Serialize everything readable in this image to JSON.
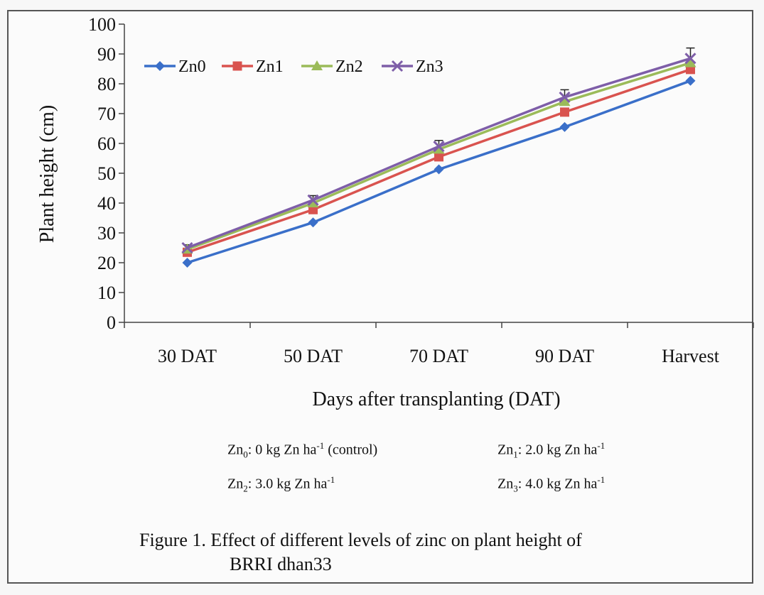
{
  "chart_data": {
    "type": "line",
    "categories": [
      "30 DAT",
      "50 DAT",
      "70 DAT",
      "90 DAT",
      "Harvest"
    ],
    "ylabel": "Plant height (cm)",
    "xlabel": "Days after  transplanting (DAT)",
    "ylim": [
      0,
      100
    ],
    "yticks": [
      "0",
      "10",
      "20",
      "30",
      "40",
      "50",
      "60",
      "70",
      "80",
      "90",
      "100"
    ],
    "grid": false,
    "legend_position": "top-left",
    "series": [
      {
        "name": "Zn0",
        "color": "#3a6fc9",
        "marker": "diamond",
        "values": [
          20.0,
          33.5,
          51.3,
          65.5,
          81.0
        ]
      },
      {
        "name": "Zn1",
        "color": "#d9534f",
        "marker": "square",
        "values": [
          23.5,
          37.8,
          55.5,
          70.5,
          84.8
        ]
      },
      {
        "name": "Zn2",
        "color": "#9bbb59",
        "marker": "triangle",
        "values": [
          24.5,
          40.0,
          58.0,
          74.0,
          87.0
        ]
      },
      {
        "name": "Zn3",
        "color": "#7e5ea8",
        "marker": "x",
        "values": [
          25.0,
          41.0,
          59.0,
          75.5,
          88.5
        ]
      }
    ],
    "error_bar_tops": [
      26.0,
      42.5,
      61.0,
      78.0,
      92.0
    ]
  },
  "notes": {
    "zn0": {
      "base": "Zn",
      "sub": "0",
      "text": ": 0 kg Zn ha",
      "sup": "-1",
      "tail": " (control)"
    },
    "zn1": {
      "base": "Zn",
      "sub": "1",
      "text": ": 2.0 kg Zn ha",
      "sup": "-1",
      "tail": ""
    },
    "zn2": {
      "base": "Zn",
      "sub": "2",
      "text": ": 3.0 kg Zn ha",
      "sup": "-1",
      "tail": ""
    },
    "zn3": {
      "base": "Zn",
      "sub": "3",
      "text": ": 4.0 kg Zn ha",
      "sup": "-1",
      "tail": ""
    }
  },
  "caption": {
    "line1": "Figure 1. Effect of  different levels of zinc  on plant height of",
    "line2": "BRRI dhan33"
  }
}
